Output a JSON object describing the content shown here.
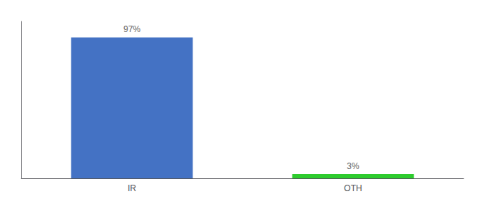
{
  "chart_data": {
    "type": "bar",
    "categories": [
      "IR",
      "OTH"
    ],
    "values": [
      97,
      3
    ],
    "value_labels": [
      "97%",
      "3%"
    ],
    "colors": [
      "#4472c4",
      "#2ecc2e"
    ],
    "ylim": [
      0,
      108
    ],
    "grid": false,
    "tick_labels": "x",
    "data_labels": true
  }
}
